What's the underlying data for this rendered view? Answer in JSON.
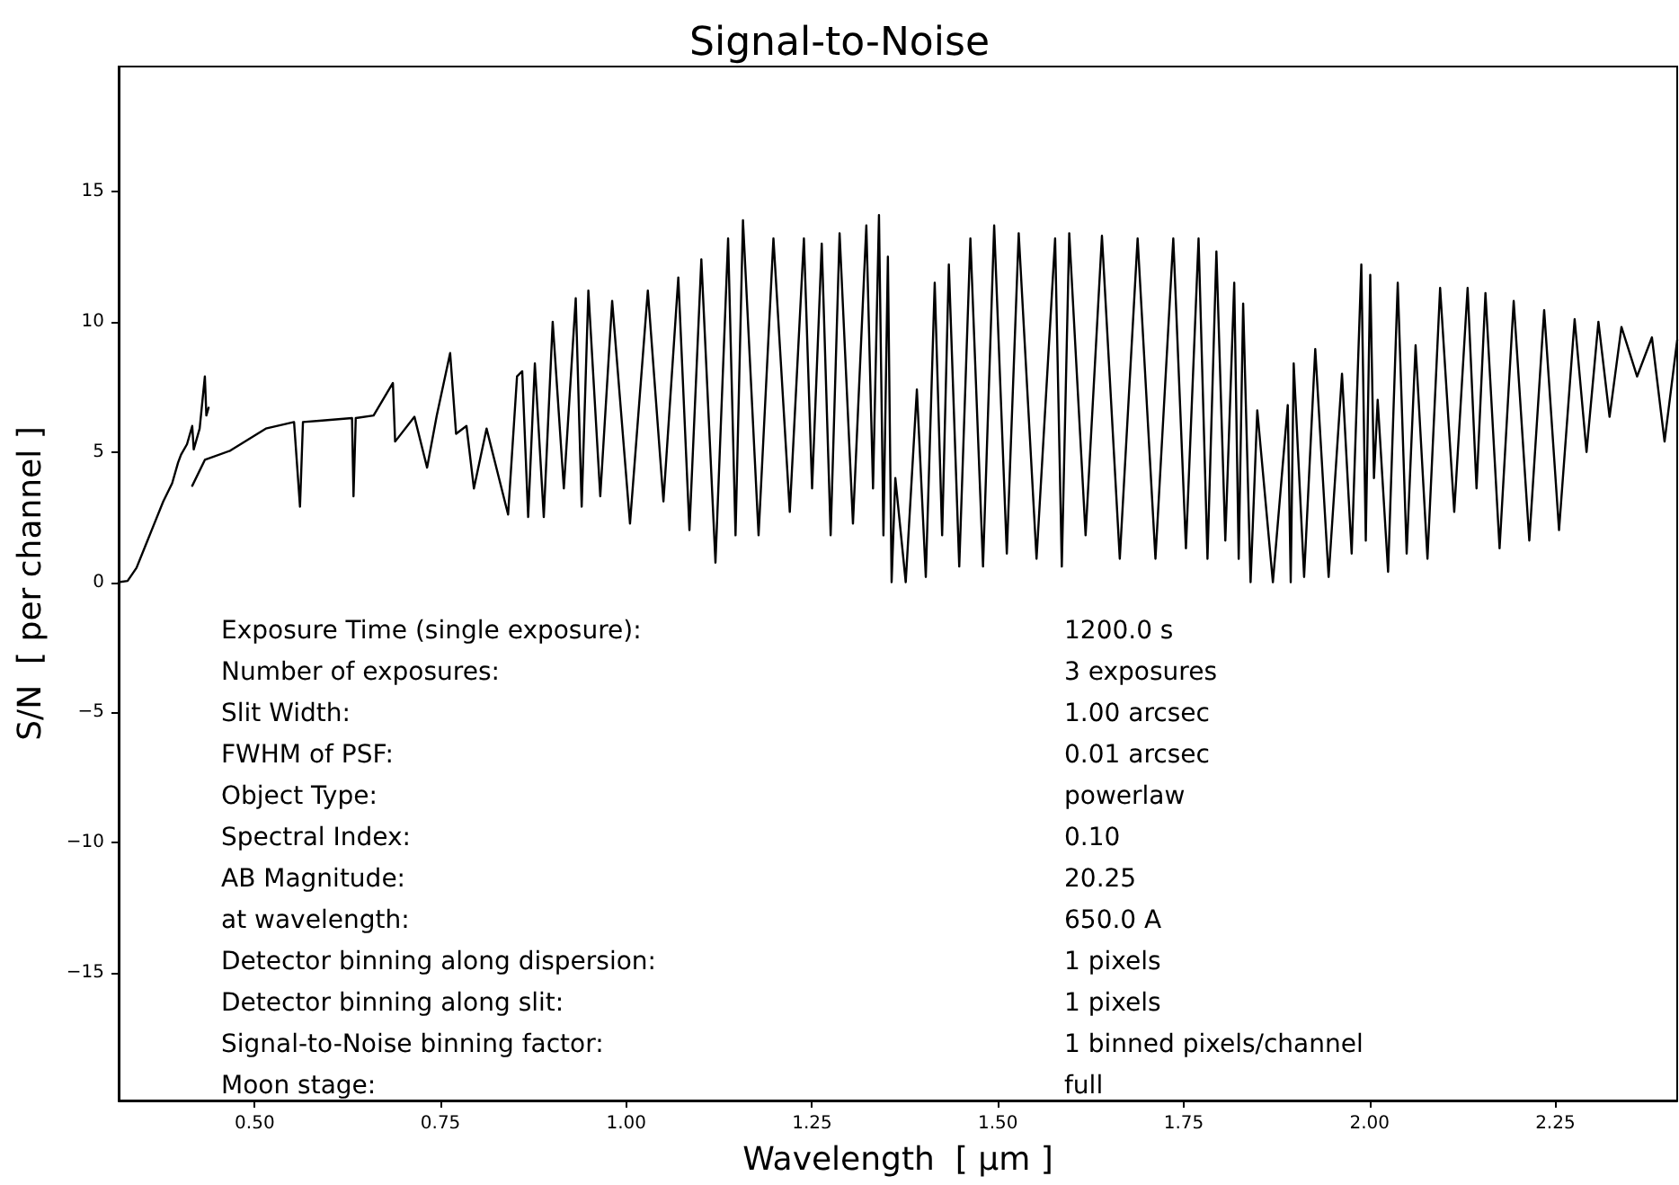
{
  "chart_data": {
    "type": "line",
    "title": "Signal-to-Noise",
    "xlabel": "Wavelength  [ μm ]",
    "ylabel": "S/N  [ per channel ]",
    "xlim": [
      0.317,
      2.414
    ],
    "ylim": [
      -19.9,
      19.8
    ],
    "xticks": [
      {
        "value": 0.5,
        "label": "0.50"
      },
      {
        "value": 0.75,
        "label": "0.75"
      },
      {
        "value": 1.0,
        "label": "1.00"
      },
      {
        "value": 1.25,
        "label": "1.25"
      },
      {
        "value": 1.5,
        "label": "1.50"
      },
      {
        "value": 1.75,
        "label": "1.75"
      },
      {
        "value": 2.0,
        "label": "2.00"
      },
      {
        "value": 2.25,
        "label": "2.25"
      }
    ],
    "yticks": [
      {
        "value": -15,
        "label": "−15"
      },
      {
        "value": -10,
        "label": "−10"
      },
      {
        "value": -5,
        "label": "−5"
      },
      0,
      5,
      10,
      15
    ],
    "grid": false,
    "marker": "none",
    "line_style": "solid",
    "series": [
      {
        "color": "#000000",
        "x": [
          0.317,
          0.329,
          0.341,
          0.353,
          0.365,
          0.377,
          0.389,
          0.397,
          0.401,
          0.409,
          0.416,
          0.418,
          0.426,
          0.433,
          0.435,
          0.438
        ],
        "values": [
          0,
          0.05,
          0.55,
          1.4,
          2.25,
          3.1,
          3.8,
          4.6,
          4.9,
          5.3,
          6.0,
          5.1,
          5.9,
          7.9,
          6.4,
          6.7
        ]
      },
      {
        "color": "#000000",
        "x": [
          0.416,
          0.433,
          0.467,
          0.515,
          0.553,
          0.561,
          0.565,
          0.587,
          0.631,
          0.633,
          0.636,
          0.66,
          0.686,
          0.689,
          0.715,
          0.732,
          0.745,
          0.763,
          0.771,
          0.785,
          0.795,
          0.812,
          0.841,
          0.853,
          0.86,
          0.868,
          0.877,
          0.889,
          0.901,
          0.916,
          0.932,
          0.94,
          0.949,
          0.965,
          0.981,
          1.005,
          1.029,
          1.05,
          1.07,
          1.085,
          1.101,
          1.12,
          1.137,
          1.147,
          1.157,
          1.178,
          1.198,
          1.22,
          1.239,
          1.25,
          1.263,
          1.275,
          1.287,
          1.305,
          1.323,
          1.332,
          1.34,
          1.346,
          1.352,
          1.357,
          1.362,
          1.376,
          1.391,
          1.403,
          1.415,
          1.425,
          1.434,
          1.448,
          1.463,
          1.48,
          1.495,
          1.512,
          1.528,
          1.552,
          1.577,
          1.586,
          1.596,
          1.618,
          1.64,
          1.664,
          1.688,
          1.712,
          1.736,
          1.753,
          1.77,
          1.782,
          1.794,
          1.806,
          1.818,
          1.824,
          1.83,
          1.84,
          1.849,
          1.87,
          1.89,
          1.894,
          1.898,
          1.912,
          1.927,
          1.945,
          1.963,
          1.976,
          1.989,
          1.995,
          2.001,
          2.006,
          2.011,
          2.025,
          2.038,
          2.05,
          2.062,
          2.078,
          2.095,
          2.114,
          2.132,
          2.144,
          2.156,
          2.175,
          2.194,
          2.215,
          2.235,
          2.255,
          2.276,
          2.292,
          2.308,
          2.323,
          2.339,
          2.36,
          2.38,
          2.397,
          2.414
        ],
        "values": [
          3.7,
          4.7,
          5.05,
          5.9,
          6.15,
          2.9,
          6.15,
          6.2,
          6.3,
          3.3,
          6.3,
          6.4,
          7.65,
          5.4,
          6.35,
          4.4,
          6.4,
          8.8,
          5.7,
          6.0,
          3.6,
          5.9,
          2.6,
          7.9,
          8.1,
          2.5,
          8.4,
          2.5,
          10.0,
          3.6,
          10.9,
          2.9,
          11.2,
          3.3,
          10.8,
          2.25,
          11.2,
          3.1,
          11.7,
          2.0,
          12.4,
          0.75,
          13.2,
          1.8,
          13.9,
          1.8,
          13.2,
          2.7,
          13.2,
          3.6,
          13.0,
          1.8,
          13.4,
          2.25,
          13.7,
          3.6,
          14.1,
          1.8,
          12.5,
          0,
          4.0,
          0,
          7.4,
          0.2,
          11.5,
          1.8,
          12.2,
          0.6,
          13.2,
          0.6,
          13.7,
          1.1,
          13.4,
          0.9,
          13.2,
          0.6,
          13.4,
          1.8,
          13.3,
          0.9,
          13.2,
          0.9,
          13.2,
          1.3,
          13.2,
          0.9,
          12.7,
          1.6,
          11.5,
          0.9,
          10.7,
          0,
          6.6,
          0,
          6.8,
          0,
          8.4,
          0.2,
          8.95,
          0.2,
          8.0,
          1.1,
          12.2,
          1.6,
          11.8,
          4.0,
          7.0,
          0.4,
          11.5,
          1.1,
          9.1,
          0.9,
          11.3,
          2.7,
          11.3,
          3.6,
          11.1,
          1.3,
          10.8,
          1.6,
          10.45,
          2.0,
          10.1,
          5.0,
          10.0,
          6.35,
          9.8,
          7.9,
          9.4,
          5.4,
          9.3
        ]
      }
    ],
    "annotations": [
      "Exposure Time (single exposure):",
      "1200.0 s",
      "Number of exposures:",
      "3 exposures",
      "Slit Width:",
      "1.00 arcsec",
      "FWHM of PSF:",
      "0.01 arcsec",
      "Object Type:",
      "powerlaw",
      "Spectral Index:",
      "0.10",
      "AB Magnitude:",
      "20.25",
      "at wavelength:",
      "650.0 A",
      "Detector binning along dispersion:",
      "1 pixels",
      "Detector binning along slit:",
      "1 pixels",
      "Signal-to-Noise binning factor:",
      "1 binned pixels/channel",
      "Moon stage:",
      "full"
    ]
  }
}
